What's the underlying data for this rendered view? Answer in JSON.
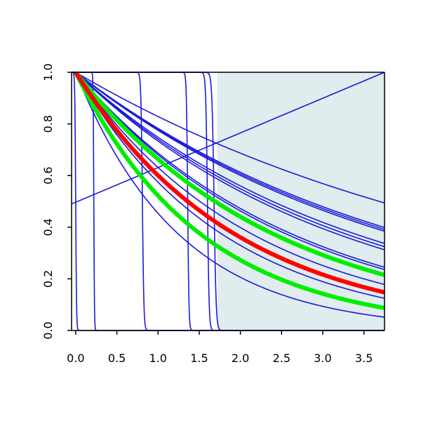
{
  "chart_data": {
    "type": "line",
    "title": "",
    "xlabel": "",
    "ylabel": "",
    "xlim": [
      -0.05,
      3.75
    ],
    "ylim": [
      0.0,
      1.0
    ],
    "x_ticks": [
      "0.0",
      "0.5",
      "1.0",
      "1.5",
      "2.0",
      "2.5",
      "3.0",
      "3.5"
    ],
    "x_tick_values": [
      0.0,
      0.5,
      1.0,
      1.5,
      2.0,
      2.5,
      3.0,
      3.5
    ],
    "y_ticks": [
      "0.0",
      "0.2",
      "0.4",
      "0.6",
      "0.8",
      "1.0"
    ],
    "y_tick_values": [
      0.0,
      0.2,
      0.4,
      0.6,
      0.8,
      1.0
    ],
    "shaded_region": {
      "x_from": 1.72,
      "x_to": 3.75,
      "color": "#e0eced"
    },
    "colors": {
      "blue": "#1a1adb",
      "red": "#ff0000",
      "green": "#00ee00",
      "shade": "#e0eced"
    },
    "series": [
      {
        "kind": "step",
        "step_at": 0.0,
        "width": 0.02,
        "color": "blue"
      },
      {
        "kind": "step",
        "step_at": 0.22,
        "width": 0.015,
        "color": "blue"
      },
      {
        "kind": "step",
        "step_at": 0.81,
        "width": 0.035,
        "color": "blue"
      },
      {
        "kind": "step",
        "step_at": 1.36,
        "width": 0.03,
        "color": "blue"
      },
      {
        "kind": "step",
        "step_at": 1.6,
        "width": 0.04,
        "color": "blue"
      },
      {
        "kind": "step",
        "step_at": 1.68,
        "width": 0.05,
        "color": "blue"
      },
      {
        "kind": "line",
        "x": [
          -0.05,
          3.75
        ],
        "y": [
          0.49,
          1.0
        ],
        "color": "blue"
      },
      {
        "kind": "exp",
        "rate": 0.188,
        "color": "blue"
      },
      {
        "kind": "exp",
        "rate": 0.245,
        "color": "blue"
      },
      {
        "kind": "exp",
        "rate": 0.25,
        "color": "blue"
      },
      {
        "kind": "exp",
        "rate": 0.255,
        "color": "blue"
      },
      {
        "kind": "exp",
        "rate": 0.29,
        "color": "blue"
      },
      {
        "kind": "exp",
        "rate": 0.3,
        "color": "blue"
      },
      {
        "kind": "exp",
        "rate": 0.31,
        "color": "blue"
      },
      {
        "kind": "exp",
        "rate": 0.375,
        "color": "blue"
      },
      {
        "kind": "exp",
        "rate": 0.385,
        "color": "blue"
      },
      {
        "kind": "exp",
        "rate": 0.46,
        "color": "blue"
      },
      {
        "kind": "exp",
        "rate": 0.555,
        "color": "blue"
      },
      {
        "kind": "exp",
        "rate": 0.79,
        "color": "blue"
      },
      {
        "kind": "exp",
        "rate": 0.41,
        "color": "green",
        "thick": true
      },
      {
        "kind": "exp",
        "rate": 0.65,
        "color": "green",
        "thick": true
      },
      {
        "kind": "exp",
        "rate": 0.51,
        "color": "red",
        "thick": true
      }
    ]
  }
}
